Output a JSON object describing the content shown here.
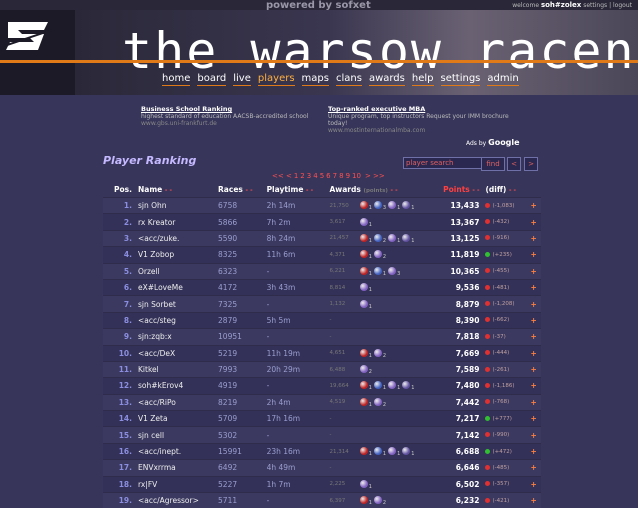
{
  "header": {
    "powered": "powered by sofxet",
    "welcome_prefix": "welcome",
    "username": "soh#zolex",
    "settings": "settings",
    "logout": "logout",
    "site_title": "the warsow racenet",
    "nav": [
      "home",
      "board",
      "live",
      "players",
      "maps",
      "clans",
      "awards",
      "help",
      "settings",
      "admin"
    ],
    "nav_active": "players"
  },
  "ads": [
    {
      "title": "Business School Ranking",
      "desc": "highest standard of education AACSB-accredited school",
      "url": "www.gbs.uni-frankfurt.de"
    },
    {
      "title": "Top-ranked executive MBA",
      "desc": "Unique program, top instructors Request your IMM brochure today!",
      "url": "www.mostinternationalmba.com"
    }
  ],
  "ads_by": "Ads by",
  "ads_brand": "Google",
  "ranking_title": "Player Ranking",
  "search": {
    "placeholder": "player search",
    "find_label": "find",
    "prev_label": "<",
    "next_label": ">"
  },
  "pager": {
    "prev": "<< <",
    "pages": [
      "1",
      "2",
      "3",
      "4",
      "5",
      "6",
      "7",
      "8",
      "9",
      "10"
    ],
    "next": "> >>"
  },
  "table": {
    "headers": {
      "pos": "Pos.",
      "name": "Name",
      "races": "Races",
      "playtime": "Playtime",
      "awards": "Awards",
      "awards_sub": "(points)",
      "points": "Points",
      "diff": "(diff)"
    },
    "sort_arrows": "- -",
    "plus": "+",
    "rows": [
      {
        "pos": "1.",
        "name": "sjn Ohn",
        "races": "6758",
        "play": "2h 14m",
        "ap": "21,750",
        "medals": [
          [
            "#c02020",
            "1"
          ],
          [
            "#4060c0",
            "3"
          ],
          [
            "#8060c0",
            "1"
          ],
          [
            "#6050a0",
            "1"
          ]
        ],
        "pts": "13,433",
        "diff": "(-1,083)",
        "dcol": "#e03030"
      },
      {
        "pos": "2.",
        "name": "rx Kreator",
        "races": "5866",
        "play": "7h 2m",
        "ap": "3,617",
        "medals": [
          [
            "#8060c0",
            "1"
          ]
        ],
        "pts": "13,367",
        "diff": "(-432)",
        "dcol": "#e03030"
      },
      {
        "pos": "3.",
        "name": "<acc/zuke.",
        "races": "5590",
        "play": "8h 24m",
        "ap": "21,457",
        "medals": [
          [
            "#c02020",
            "1"
          ],
          [
            "#4060c0",
            "2"
          ],
          [
            "#8060c0",
            "1"
          ],
          [
            "#6050a0",
            "1"
          ]
        ],
        "pts": "13,125",
        "diff": "(-916)",
        "dcol": "#e03030"
      },
      {
        "pos": "4.",
        "name": "V1 Zobop",
        "races": "8325",
        "play": "11h 6m",
        "ap": "4,371",
        "medals": [
          [
            "#c02020",
            "1"
          ],
          [
            "#8060c0",
            "2"
          ]
        ],
        "pts": "11,819",
        "diff": "(+235)",
        "dcol": "#30c030"
      },
      {
        "pos": "5.",
        "name": "Orzell",
        "races": "6323",
        "play": "-",
        "ap": "6,221",
        "medals": [
          [
            "#c02020",
            "1"
          ],
          [
            "#4060c0",
            "1"
          ],
          [
            "#8060c0",
            "3"
          ]
        ],
        "pts": "10,365",
        "diff": "(-455)",
        "dcol": "#e03030"
      },
      {
        "pos": "6.",
        "name": "eX#LoveMe",
        "races": "4172",
        "play": "3h 43m",
        "ap": "8,814",
        "medals": [
          [
            "#8060c0",
            "1"
          ]
        ],
        "pts": "9,536",
        "diff": "(-481)",
        "dcol": "#e03030"
      },
      {
        "pos": "7.",
        "name": "sjn Sorbet",
        "races": "7325",
        "play": "-",
        "ap": "1,132",
        "medals": [
          [
            "#8060c0",
            "1"
          ]
        ],
        "pts": "8,879",
        "diff": "(-1,208)",
        "dcol": "#e03030"
      },
      {
        "pos": "8.",
        "name": "<acc/steg",
        "races": "2879",
        "play": "5h 5m",
        "ap": "-",
        "medals": [],
        "pts": "8,390",
        "diff": "(-662)",
        "dcol": "#e03030"
      },
      {
        "pos": "9.",
        "name": "sjn:zqb:x",
        "races": "10951",
        "play": "-",
        "ap": "-",
        "medals": [],
        "pts": "7,818",
        "diff": "(-37)",
        "dcol": "#e03030"
      },
      {
        "pos": "10.",
        "name": "<acc/DeX",
        "races": "5219",
        "play": "11h 19m",
        "ap": "4,651",
        "medals": [
          [
            "#c02020",
            "1"
          ],
          [
            "#8060c0",
            "2"
          ]
        ],
        "pts": "7,669",
        "diff": "(-444)",
        "dcol": "#e03030"
      },
      {
        "pos": "11.",
        "name": "Kitkel",
        "races": "7993",
        "play": "20h 29m",
        "ap": "6,488",
        "medals": [
          [
            "#8060c0",
            "2"
          ]
        ],
        "pts": "7,589",
        "diff": "(-261)",
        "dcol": "#e03030"
      },
      {
        "pos": "12.",
        "name": "soh#kErov4",
        "races": "4919",
        "play": "-",
        "ap": "19,664",
        "medals": [
          [
            "#c02020",
            "1"
          ],
          [
            "#4060c0",
            "1"
          ],
          [
            "#8060c0",
            "1"
          ],
          [
            "#6050a0",
            "1"
          ]
        ],
        "pts": "7,480",
        "diff": "(-1,186)",
        "dcol": "#e03030"
      },
      {
        "pos": "13.",
        "name": "<acc/RiPo",
        "races": "8219",
        "play": "2h 4m",
        "ap": "4,519",
        "medals": [
          [
            "#c02020",
            "1"
          ],
          [
            "#8060c0",
            "2"
          ]
        ],
        "pts": "7,442",
        "diff": "(-768)",
        "dcol": "#e03030"
      },
      {
        "pos": "14.",
        "name": "V1 Zeta",
        "races": "5709",
        "play": "17h 16m",
        "ap": "-",
        "medals": [],
        "pts": "7,217",
        "diff": "(+777)",
        "dcol": "#30c030"
      },
      {
        "pos": "15.",
        "name": "sjn cell",
        "races": "5302",
        "play": "-",
        "ap": "-",
        "medals": [],
        "pts": "7,142",
        "diff": "(-990)",
        "dcol": "#e03030"
      },
      {
        "pos": "16.",
        "name": "<acc/inept.",
        "races": "15991",
        "play": "23h 16m",
        "ap": "21,314",
        "medals": [
          [
            "#c02020",
            "1"
          ],
          [
            "#4060c0",
            "1"
          ],
          [
            "#8060c0",
            "1"
          ],
          [
            "#6050a0",
            "1"
          ]
        ],
        "pts": "6,688",
        "diff": "(+472)",
        "dcol": "#30c030"
      },
      {
        "pos": "17.",
        "name": "ENVxrrma",
        "races": "6492",
        "play": "4h 49m",
        "ap": "-",
        "medals": [],
        "pts": "6,646",
        "diff": "(-485)",
        "dcol": "#e03030"
      },
      {
        "pos": "18.",
        "name": "rx|FV",
        "races": "5227",
        "play": "1h 7m",
        "ap": "2,225",
        "medals": [
          [
            "#8060c0",
            "1"
          ]
        ],
        "pts": "6,502",
        "diff": "(-357)",
        "dcol": "#e03030"
      },
      {
        "pos": "19.",
        "name": "<acc/Agressor>",
        "races": "5711",
        "play": "-",
        "ap": "6,397",
        "medals": [
          [
            "#c02020",
            "1"
          ],
          [
            "#8060c0",
            "2"
          ]
        ],
        "pts": "6,232",
        "diff": "(-421)",
        "dcol": "#e03030"
      }
    ]
  }
}
